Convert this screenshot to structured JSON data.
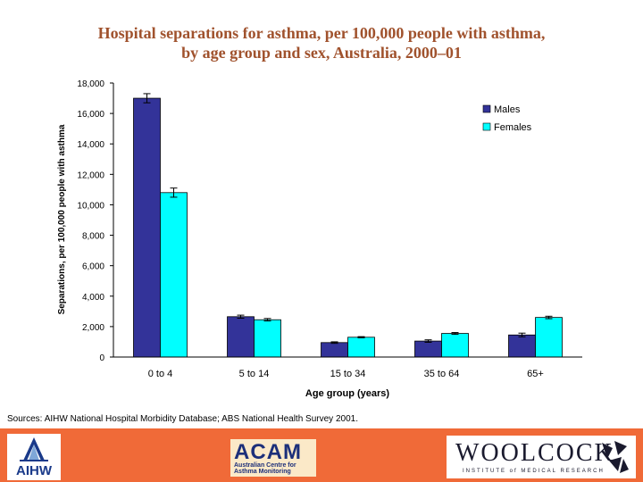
{
  "header": {
    "title_line1": "Hospital separations for asthma, per 100,000 people with asthma,",
    "title_line2": "by age group and sex, Australia, 2000–01"
  },
  "chart_data": {
    "type": "bar",
    "categories": [
      "0 to 4",
      "5 to 14",
      "15 to 34",
      "35 to 64",
      "65+"
    ],
    "series": [
      {
        "name": "Males",
        "color": "#333399",
        "values": [
          17000,
          2650,
          950,
          1050,
          1450
        ],
        "error": [
          300,
          100,
          50,
          80,
          120
        ]
      },
      {
        "name": "Females",
        "color": "#00ffff",
        "values": [
          10800,
          2450,
          1300,
          1550,
          2600
        ],
        "error": [
          300,
          80,
          40,
          60,
          80
        ]
      }
    ],
    "xlabel": "Age group (years)",
    "ylabel": "Separations, per 100,000 people with asthma",
    "ylim": [
      0,
      18000
    ],
    "yticks": [
      0,
      2000,
      4000,
      6000,
      8000,
      10000,
      12000,
      14000,
      16000,
      18000
    ],
    "ytick_labels": [
      "0",
      "2,000",
      "4,000",
      "6,000",
      "8,000",
      "10,000",
      "12,000",
      "14,000",
      "16,000",
      "18,000"
    ],
    "legend": "top-right",
    "grid": false
  },
  "sources": "Sources: AIHW National Hospital Morbidity Database; ABS National Health Survey 2001.",
  "footer": {
    "aihw_label": "AIHW",
    "acam_label": "ACAM",
    "acam_sub": "Australian Centre for Asthma Monitoring",
    "woolcock_label": "WOOLCOCK",
    "woolcock_sub": "INSTITUTE of MEDICAL RESEARCH",
    "background_color": "#f06a38"
  }
}
